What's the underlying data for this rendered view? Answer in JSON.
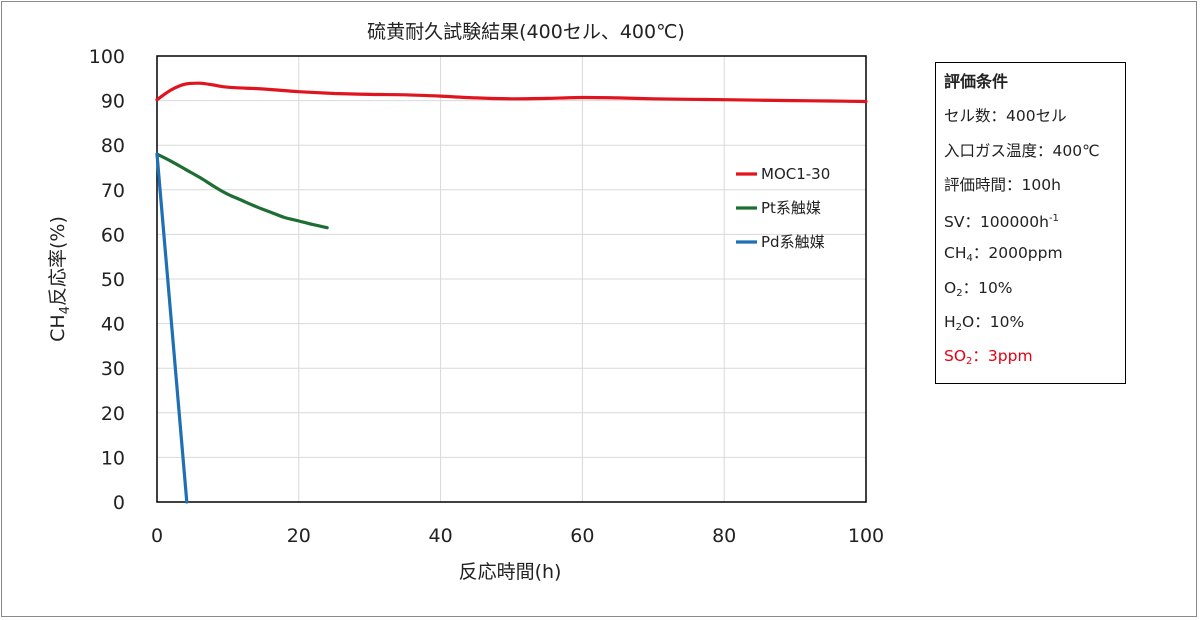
{
  "chart_data": {
    "type": "line",
    "title": "硫黄耐久試験結果(400セル、400℃)",
    "xlabel": "反応時間(h)",
    "ylabel": {
      "pre": "CH",
      "sub": "4",
      "post": "反応率(%)"
    },
    "xlim": [
      0,
      100
    ],
    "ylim": [
      0,
      100
    ],
    "xticks": [
      "0",
      "20",
      "40",
      "60",
      "80",
      "100"
    ],
    "yticks": [
      "0",
      "10",
      "20",
      "30",
      "40",
      "50",
      "60",
      "70",
      "80",
      "90",
      "100"
    ],
    "grid": true,
    "legend_position": "right-inside",
    "series": [
      {
        "name": "MOC1-30",
        "color": "#e0141e",
        "x": [
          0,
          2,
          4,
          6,
          8,
          10,
          15,
          20,
          25,
          30,
          35,
          40,
          45,
          50,
          55,
          60,
          65,
          70,
          75,
          80,
          85,
          90,
          95,
          100
        ],
        "y": [
          90.2,
          92.4,
          93.7,
          93.9,
          93.5,
          93.0,
          92.6,
          92.0,
          91.6,
          91.4,
          91.3,
          91.0,
          90.6,
          90.4,
          90.5,
          90.7,
          90.6,
          90.4,
          90.3,
          90.2,
          90.1,
          90.0,
          89.9,
          89.8
        ]
      },
      {
        "name": "Pt系触媒",
        "color": "#1e6e34",
        "x": [
          0,
          2,
          4,
          6,
          8,
          10,
          12,
          14,
          16,
          18,
          20,
          22,
          24
        ],
        "y": [
          78.0,
          76.4,
          74.6,
          72.8,
          70.8,
          69.0,
          67.6,
          66.2,
          65.0,
          63.8,
          63.0,
          62.2,
          61.5
        ]
      },
      {
        "name": "Pd系触媒",
        "color": "#1f6fb4",
        "x": [
          0,
          4.2
        ],
        "y": [
          78.0,
          0
        ]
      }
    ]
  },
  "conditions": {
    "heading": "評価条件",
    "cell_count": "セル数：400セル",
    "inlet_temp": "入口ガス温度：400℃",
    "eval_time": "評価時間：100h",
    "sv": {
      "text": "SV：100000h",
      "sup": "-1"
    },
    "ch4": {
      "pre": "CH",
      "sub": "4",
      "post": "：2000ppm"
    },
    "o2": {
      "pre": "O",
      "sub": "2",
      "post": "：10%"
    },
    "h2o": {
      "pre": "H",
      "sub": "2",
      "post": "O：10%"
    },
    "so2": {
      "pre": "SO",
      "sub": "2",
      "post": "：3ppm",
      "color": "#e60012"
    }
  }
}
